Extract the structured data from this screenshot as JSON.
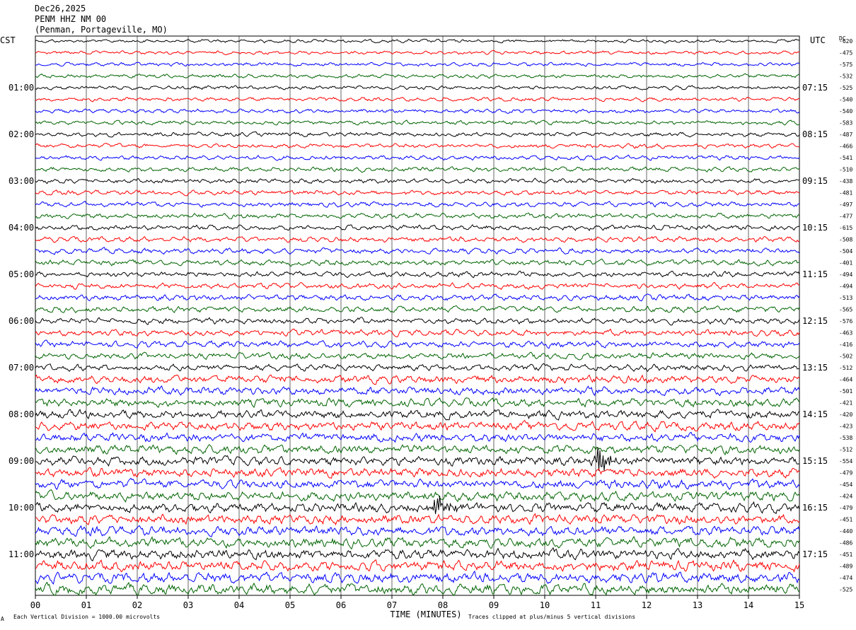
{
  "header": {
    "date": "Dec26,2025",
    "station": "PENM HHZ NM 00",
    "location": "(Penman, Portageville, MO)"
  },
  "left_zone": "CST",
  "right_zone": "UTC",
  "dc_label": "DC",
  "left_hours": [
    "01:00",
    "02:00",
    "03:00",
    "04:00",
    "05:00",
    "06:00",
    "07:00",
    "08:00",
    "09:00",
    "10:00",
    "11:00"
  ],
  "right_hours": [
    "07:15",
    "08:15",
    "09:15",
    "10:15",
    "11:15",
    "12:15",
    "13:15",
    "14:15",
    "15:15",
    "16:15",
    "17:15"
  ],
  "footer": {
    "scale_note": "Each Vertical Division = 1000.00 microvolts",
    "clip_note": "Traces clipped at plus/minus 5 vertical divisions",
    "corner_mark": "A"
  },
  "chart_data": {
    "type": "line",
    "xlabel": "TIME (MINUTES)",
    "xlim": [
      0,
      15
    ],
    "x_ticks": [
      "00",
      "01",
      "02",
      "03",
      "04",
      "05",
      "06",
      "07",
      "08",
      "09",
      "10",
      "11",
      "12",
      "13",
      "14",
      "15"
    ],
    "trace_colors": [
      "#000000",
      "#ff0000",
      "#0000ff",
      "#006400"
    ],
    "traces_per_hour": 4,
    "dc_offsets": [
      -620,
      -475,
      -575,
      -532,
      -525,
      -540,
      -540,
      -583,
      -487,
      -466,
      -541,
      -510,
      -438,
      -481,
      -497,
      -477,
      -615,
      -508,
      -504,
      -401,
      -494,
      -494,
      -513,
      -565,
      -576,
      -463,
      -416,
      -502,
      -512,
      -464,
      -501,
      -421,
      -420,
      -423,
      -538,
      -512,
      -554,
      -479,
      -454,
      -424,
      -479,
      -451,
      -440,
      -486,
      -451,
      -489,
      -474,
      -525
    ],
    "events": [
      {
        "trace": 36,
        "minute": 11.05,
        "amplitude": 5
      },
      {
        "trace": 40,
        "minute": 7.85,
        "amplitude": 4
      }
    ]
  }
}
